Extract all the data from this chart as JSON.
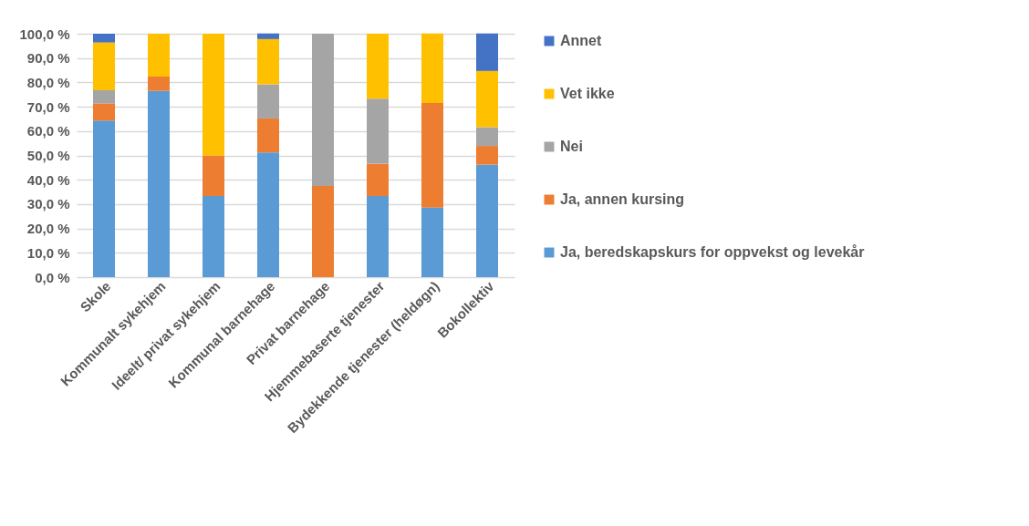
{
  "chart_data": {
    "type": "bar",
    "stacked": true,
    "categories": [
      "Skole",
      "Kommunalt sykehjem",
      "Ideelt/ privat sykehjem",
      "Kommunal barnehage",
      "Privat barnehage",
      "Hjemmebaserte tjenester",
      "Bydekkende tjenester (heldøgn)",
      "Bokollektiv"
    ],
    "series": [
      {
        "name": "Ja, beredskapskurs for oppvekst og levekår",
        "color": "#5b9bd5",
        "values": [
          64.3,
          76.5,
          33.3,
          51.2,
          0,
          33.3,
          28.6,
          46.2
        ]
      },
      {
        "name": "Ja, annen kursing",
        "color": "#ed7d31",
        "values": [
          7.1,
          5.9,
          16.7,
          14.0,
          37.5,
          13.3,
          42.9,
          7.7
        ]
      },
      {
        "name": "Nei",
        "color": "#a5a5a5",
        "values": [
          5.4,
          0,
          0,
          14.0,
          62.5,
          26.7,
          0,
          7.7
        ]
      },
      {
        "name": "Vet ikke",
        "color": "#ffc000",
        "values": [
          19.6,
          17.6,
          50.0,
          18.6,
          0,
          26.7,
          28.6,
          23.1
        ]
      },
      {
        "name": "Annet",
        "color": "#4472c4",
        "values": [
          3.6,
          0,
          0,
          2.3,
          0,
          0,
          0,
          15.4
        ]
      }
    ],
    "ylim": [
      0,
      100
    ],
    "yticks": [
      {
        "value": 0,
        "label": "0,0 %"
      },
      {
        "value": 10,
        "label": "10,0 %"
      },
      {
        "value": 20,
        "label": "20,0 %"
      },
      {
        "value": 30,
        "label": "30,0 %"
      },
      {
        "value": 40,
        "label": "40,0 %"
      },
      {
        "value": 50,
        "label": "50,0 %"
      },
      {
        "value": 60,
        "label": "60,0 %"
      },
      {
        "value": 70,
        "label": "70,0 %"
      },
      {
        "value": 80,
        "label": "80,0 %"
      },
      {
        "value": 90,
        "label": "90,0 %"
      },
      {
        "value": 100,
        "label": "100,0 %"
      }
    ],
    "grid": "y",
    "legend": "right"
  }
}
